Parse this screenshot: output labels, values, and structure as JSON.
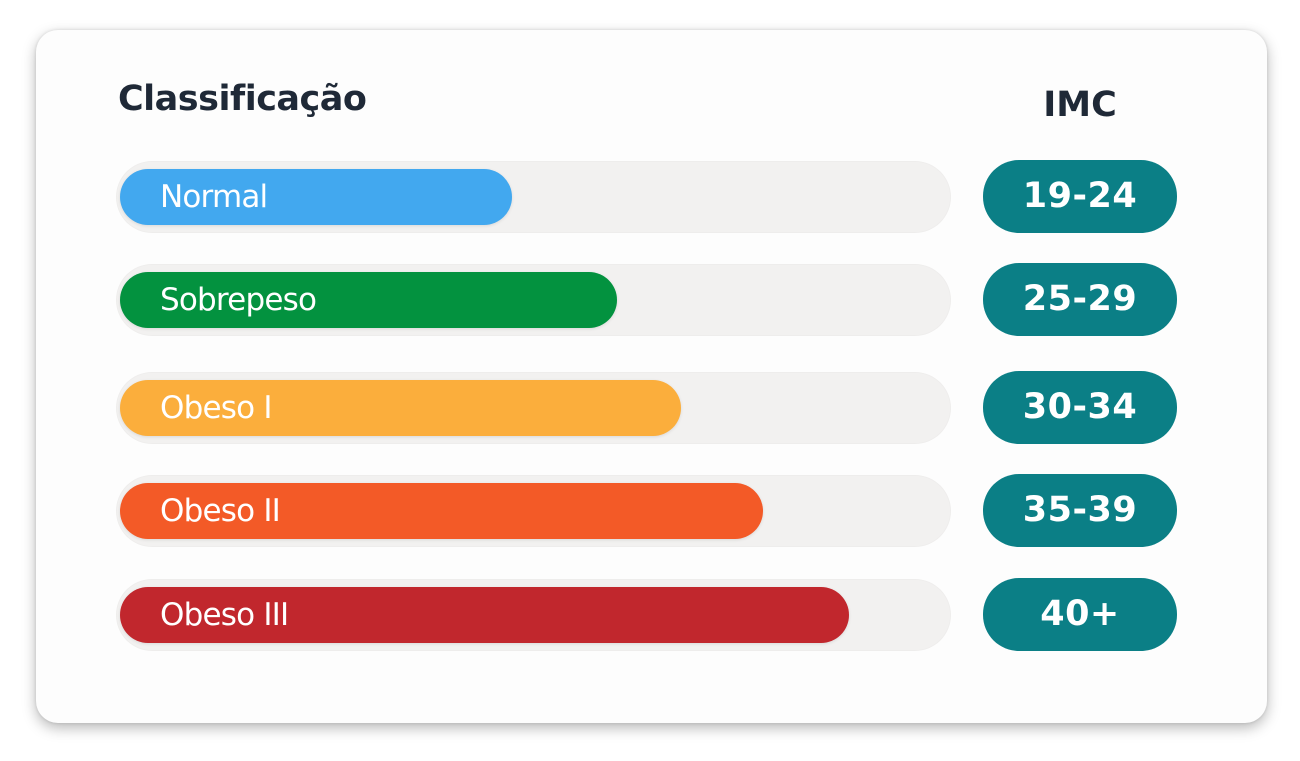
{
  "header": {
    "classification_label": "Classificação",
    "imc_label": "IMC"
  },
  "colors": {
    "pill_background": "#0b7f86",
    "track_background": "#f2f1f0"
  },
  "chart_data": {
    "type": "bar",
    "orientation": "horizontal",
    "title": "",
    "categories": [
      "Normal",
      "Sobrepeso",
      "Obeso I",
      "Obeso II",
      "Obeso III"
    ],
    "values": [
      0.47,
      0.595,
      0.672,
      0.77,
      0.873
    ],
    "value_scale": "fraction of track length",
    "imc_ranges": [
      "19-24",
      "25-29",
      "30-34",
      "35-39",
      "40+"
    ],
    "colors": [
      "#42a8ef",
      "#03923f",
      "#fbae3c",
      "#f35a27",
      "#c1272d"
    ],
    "legend": "none",
    "grid": false
  }
}
